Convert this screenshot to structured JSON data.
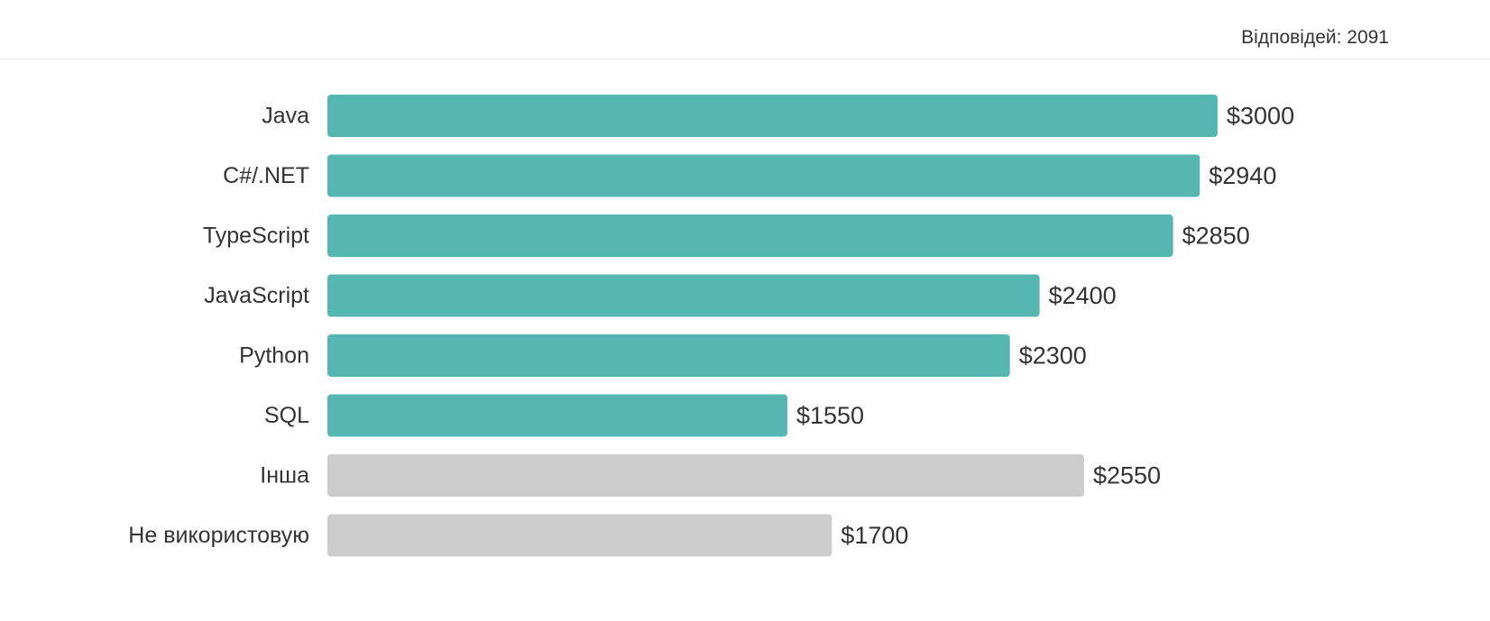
{
  "header": {
    "responses_label": "Відповідей: 2091"
  },
  "colors": {
    "highlight": "#55b6b2",
    "neutral": "#cccccc",
    "text": "#333333"
  },
  "chart_data": {
    "type": "bar",
    "orientation": "horizontal",
    "categories": [
      "Java",
      "C#/.NET",
      "TypeScript",
      "JavaScript",
      "Python",
      "SQL",
      "Інша",
      "Не використовую"
    ],
    "values": [
      3000,
      2940,
      2850,
      2400,
      2300,
      1550,
      2550,
      1700
    ],
    "value_labels": [
      "$3000",
      "$2940",
      "$2850",
      "$2400",
      "$2300",
      "$1550",
      "$2550",
      "$1700"
    ],
    "bar_color_groups": [
      "highlight",
      "highlight",
      "highlight",
      "highlight",
      "highlight",
      "highlight",
      "neutral",
      "neutral"
    ],
    "title": "",
    "xlabel": "",
    "ylabel": "",
    "xlim": [
      0,
      3000
    ],
    "grid": false,
    "legend": "none"
  }
}
